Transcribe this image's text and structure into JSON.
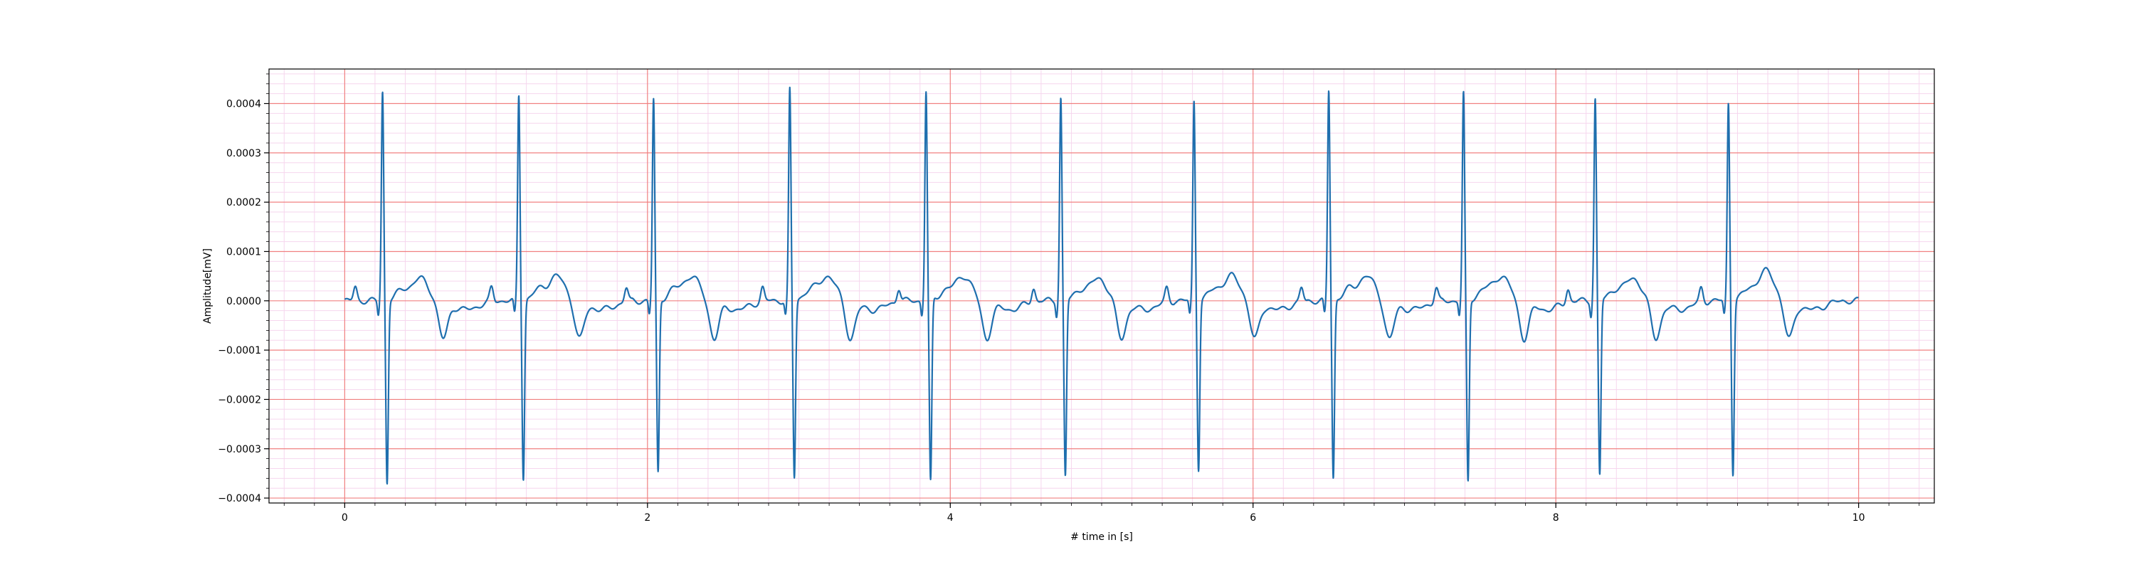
{
  "chart_data": {
    "type": "line",
    "title": "",
    "xlabel": "# time in [s]",
    "ylabel": "Amplitude[mV]",
    "xlim": [
      -0.5,
      10.5
    ],
    "ylim": [
      -0.00041,
      0.00047
    ],
    "x_ticks": [
      0,
      2,
      4,
      6,
      8,
      10
    ],
    "x_tick_labels": [
      "0",
      "2",
      "4",
      "6",
      "8",
      "10"
    ],
    "y_ticks": [
      -0.0004,
      -0.0003,
      -0.0002,
      -0.0001,
      0.0,
      0.0001,
      0.0002,
      0.0003,
      0.0004
    ],
    "y_tick_labels": [
      "−0.0004",
      "−0.0003",
      "−0.0002",
      "−0.0001",
      "0.0000",
      "0.0001",
      "0.0002",
      "0.0003",
      "0.0004"
    ],
    "grid": {
      "major": true,
      "minor": true,
      "major_color": "#f08080",
      "minor_color": "#f6d6ee"
    },
    "series_color": "#1f6fae",
    "heart_beats": {
      "r_peak_times_s": [
        0.25,
        1.15,
        2.04,
        2.94,
        3.84,
        4.73,
        5.61,
        6.5,
        7.39,
        8.26,
        9.14
      ],
      "r_peak_amplitudes_mV": [
        0.000425,
        0.000418,
        0.000408,
        0.000427,
        0.000425,
        0.000412,
        0.000405,
        0.000427,
        0.00042,
        0.00041,
        0.000402
      ],
      "s_trough_amplitudes_mV": [
        -0.00037,
        -0.00036,
        -0.00035,
        -0.00036,
        -0.00037,
        -0.000357,
        -0.00034,
        -0.00036,
        -0.00037,
        -0.000355,
        -0.00035
      ],
      "t_wave_amplitudes_mV": [
        4.5e-05,
        5e-05,
        5e-05,
        5e-05,
        5e-05,
        4.5e-05,
        5e-05,
        5e-05,
        5e-05,
        4.5e-05,
        6e-05
      ],
      "signal_start_s": 0.0,
      "signal_end_s": 10.0
    }
  }
}
